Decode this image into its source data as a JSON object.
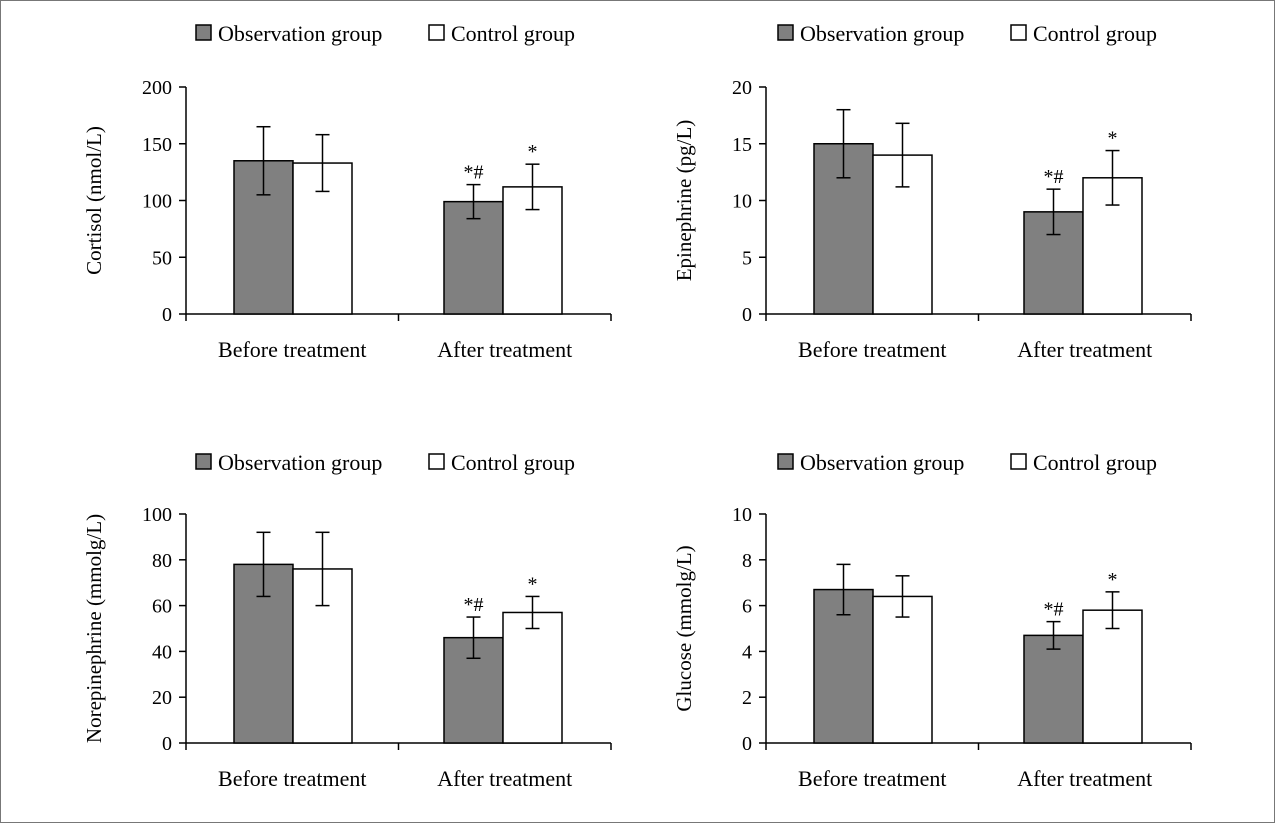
{
  "legend": {
    "observation_label": "Observation group",
    "control_label": "Control group"
  },
  "colors": {
    "observation": "#808080",
    "control": "#ffffff",
    "stroke": "#000000"
  },
  "chart_data": [
    {
      "type": "bar",
      "title": "",
      "xlabel": "",
      "ylabel": "Cortisol (nmol/L)",
      "categories": [
        "Before treatment",
        "After treatment"
      ],
      "ylim": [
        0,
        200
      ],
      "yticks": [
        0,
        50,
        100,
        150,
        200
      ],
      "legend_position": "top",
      "grid": false,
      "series": [
        {
          "name": "Observation group",
          "values": [
            135,
            99
          ],
          "errors": [
            30,
            15
          ],
          "annotations": [
            "",
            "*#"
          ]
        },
        {
          "name": "Control group",
          "values": [
            133,
            112
          ],
          "errors": [
            25,
            20
          ],
          "annotations": [
            "",
            "*"
          ]
        }
      ]
    },
    {
      "type": "bar",
      "title": "",
      "xlabel": "",
      "ylabel": "Epinephrine (pg/L)",
      "categories": [
        "Before treatment",
        "After treatment"
      ],
      "ylim": [
        0,
        20
      ],
      "yticks": [
        0,
        5,
        10,
        15,
        20
      ],
      "legend_position": "top",
      "grid": false,
      "series": [
        {
          "name": "Observation group",
          "values": [
            15,
            9
          ],
          "errors": [
            3,
            2
          ],
          "annotations": [
            "",
            "*#"
          ]
        },
        {
          "name": "Control group",
          "values": [
            14,
            12
          ],
          "errors": [
            2.8,
            2.4
          ],
          "annotations": [
            "",
            "*"
          ]
        }
      ]
    },
    {
      "type": "bar",
      "title": "",
      "xlabel": "",
      "ylabel": "Norepinephrine  (mmolg/L)",
      "categories": [
        "Before treatment",
        "After treatment"
      ],
      "ylim": [
        0,
        100
      ],
      "yticks": [
        0,
        20,
        40,
        60,
        80,
        100
      ],
      "legend_position": "top",
      "grid": false,
      "series": [
        {
          "name": "Observation group",
          "values": [
            78,
            46
          ],
          "errors": [
            14,
            9
          ],
          "annotations": [
            "",
            "*#"
          ]
        },
        {
          "name": "Control group",
          "values": [
            76,
            57
          ],
          "errors": [
            16,
            7
          ],
          "annotations": [
            "",
            "*"
          ]
        }
      ]
    },
    {
      "type": "bar",
      "title": "",
      "xlabel": "",
      "ylabel": "Glucose (mmolg/L)",
      "categories": [
        "Before treatment",
        "After treatment"
      ],
      "ylim": [
        0,
        10
      ],
      "yticks": [
        0,
        2,
        4,
        6,
        8,
        10
      ],
      "legend_position": "top",
      "grid": false,
      "series": [
        {
          "name": "Observation group",
          "values": [
            6.7,
            4.7
          ],
          "errors": [
            1.1,
            0.6
          ],
          "annotations": [
            "",
            "*#"
          ]
        },
        {
          "name": "Control group",
          "values": [
            6.4,
            5.8
          ],
          "errors": [
            0.9,
            0.8
          ],
          "annotations": [
            "",
            "*"
          ]
        }
      ]
    }
  ]
}
